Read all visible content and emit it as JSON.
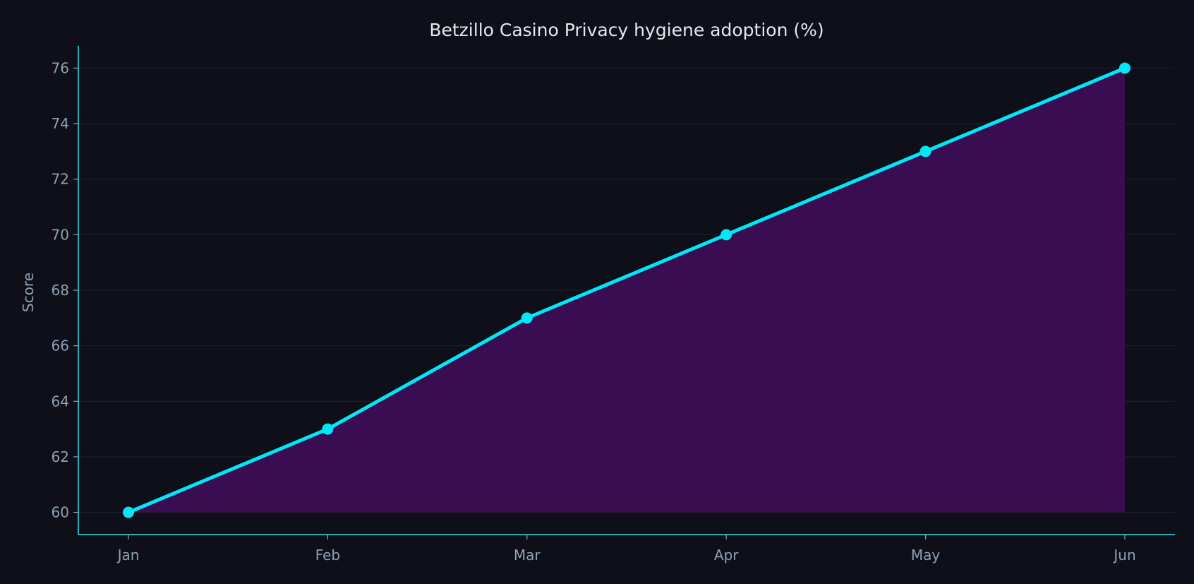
{
  "chart_data": {
    "type": "area",
    "title": "Betzillo Casino Privacy hygiene adoption (%)",
    "xlabel": "",
    "ylabel": "Score",
    "categories": [
      "Jan",
      "Feb",
      "Mar",
      "Apr",
      "May",
      "Jun"
    ],
    "series": [
      {
        "name": "Privacy hygiene adoption",
        "values": [
          60,
          63,
          67,
          70,
          73,
          76
        ]
      }
    ],
    "ylim": [
      59.2,
      76.8
    ],
    "yticks": [
      60,
      62,
      64,
      66,
      68,
      70,
      72,
      74,
      76
    ],
    "grid": true,
    "colors": {
      "background": "#0e0f18",
      "line": "#00e8f5",
      "fill": "#3a0d52",
      "axis": "#2ee6ee",
      "grid": "#1c1e2b",
      "text": "#8ea2b6"
    }
  }
}
